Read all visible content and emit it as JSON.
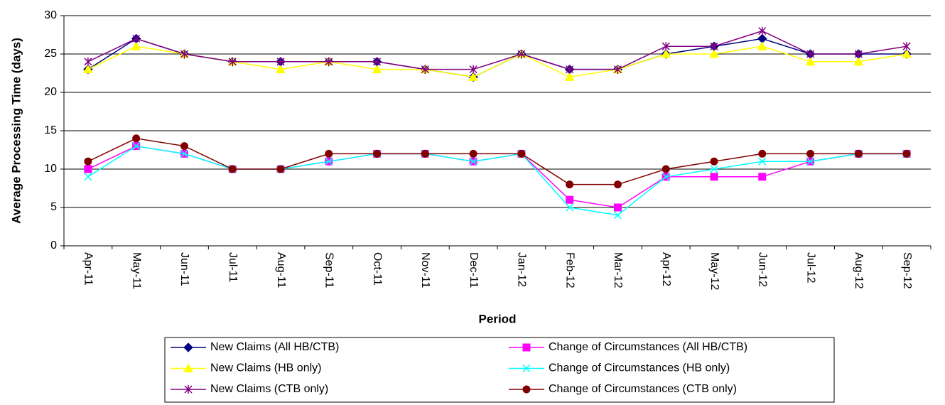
{
  "chart_data": {
    "type": "line",
    "x_label": "Period",
    "y_label": "Average Processing Time (days)",
    "categories": [
      "Apr-11",
      "May-11",
      "Jun-11",
      "Jul-11",
      "Aug-11",
      "Sep-11",
      "Oct-11",
      "Nov-11",
      "Dec-11",
      "Jan-12",
      "Feb-12",
      "Mar-12",
      "Apr-12",
      "May-12",
      "Jun-12",
      "Jul-12",
      "Aug-12",
      "Sep-12"
    ],
    "series": [
      {
        "name": "New Claims (All HB/CTB)",
        "color": "#000080",
        "marker": "diamond",
        "values": [
          23,
          27,
          25,
          24,
          24,
          24,
          24,
          23,
          22,
          25,
          23,
          23,
          25,
          26,
          27,
          25,
          25,
          25
        ]
      },
      {
        "name": "Change of Circumstances (All HB/CTB)",
        "color": "#ff00ff",
        "marker": "square",
        "values": [
          10,
          13,
          12,
          10,
          10,
          11,
          12,
          12,
          11,
          12,
          6,
          5,
          9,
          9,
          9,
          11,
          12,
          12
        ]
      },
      {
        "name": "New Claims (HB only)",
        "color": "#ffff00",
        "marker": "triangle",
        "values": [
          23,
          26,
          25,
          24,
          23,
          24,
          23,
          23,
          22,
          25,
          22,
          23,
          25,
          25,
          26,
          24,
          24,
          25
        ]
      },
      {
        "name": "Change of Circumstances (HB only)",
        "color": "#00ffff",
        "marker": "cross",
        "values": [
          9,
          13,
          12,
          10,
          10,
          11,
          12,
          12,
          11,
          12,
          5,
          4,
          9,
          10,
          11,
          11,
          12,
          12
        ]
      },
      {
        "name": "New Claims (CTB only)",
        "color": "#800080",
        "marker": "star",
        "values": [
          24,
          27,
          25,
          24,
          24,
          24,
          24,
          23,
          23,
          25,
          23,
          23,
          26,
          26,
          28,
          25,
          25,
          26
        ]
      },
      {
        "name": "Change of Circumstances (CTB only)",
        "color": "#800000",
        "marker": "circle",
        "values": [
          11,
          14,
          13,
          10,
          10,
          12,
          12,
          12,
          12,
          12,
          8,
          8,
          10,
          11,
          12,
          12,
          12,
          12
        ]
      }
    ],
    "ylim": [
      0,
      30
    ],
    "yticks": [
      0,
      5,
      10,
      15,
      20,
      25,
      30
    ],
    "grid": true,
    "legend": "bottom"
  }
}
